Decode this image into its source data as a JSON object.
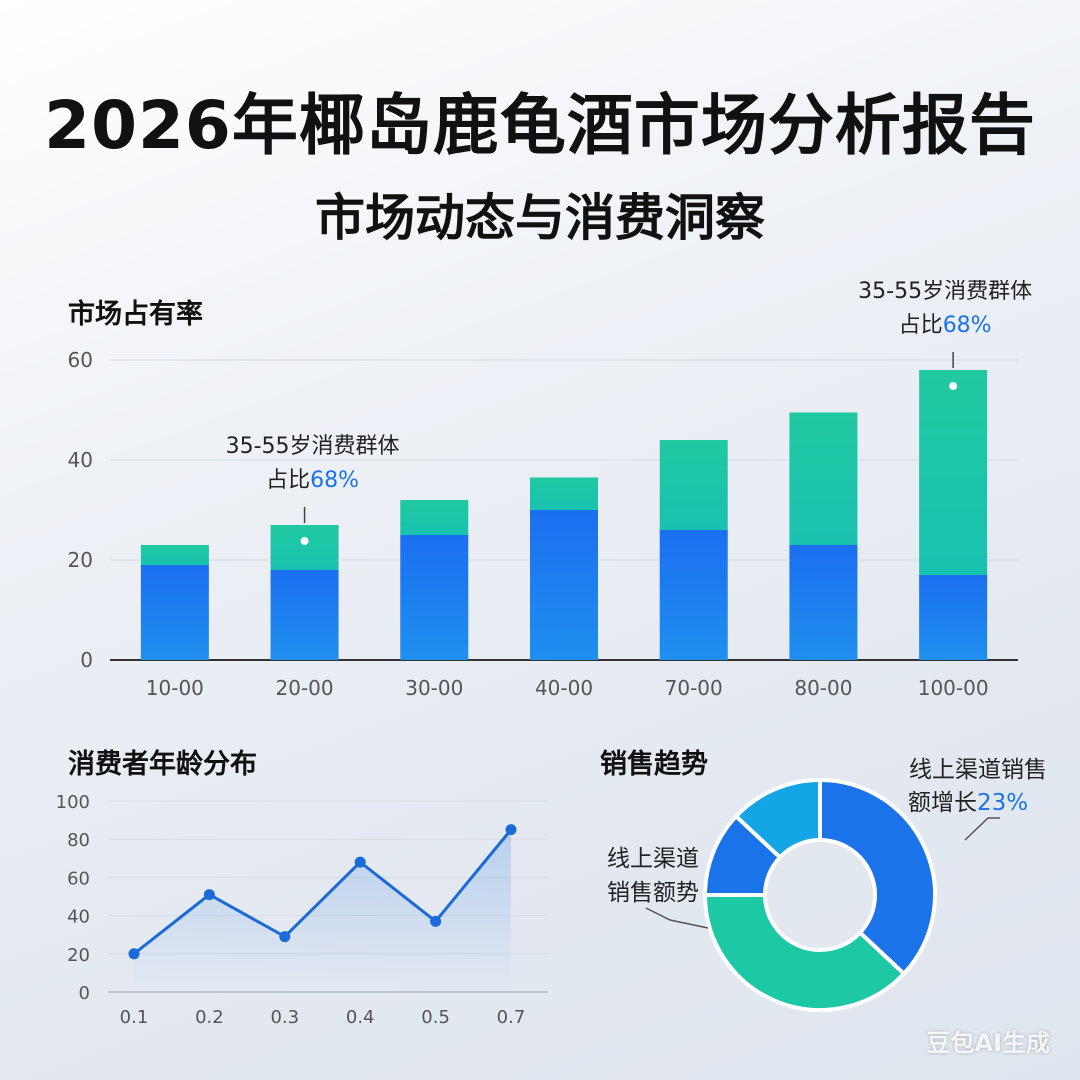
{
  "header": {
    "title": "2026年椰岛鹿龟酒市场分析报告",
    "subtitle": "市场动态与消费洞察"
  },
  "watermark": "豆包AI生成",
  "colors": {
    "blue": "#1a73e8",
    "teal": "#1dc9a4",
    "lightblue": "#13a5e6",
    "accent": "#1a73e8"
  },
  "chart_data": [
    {
      "id": "market-share",
      "type": "bar",
      "title": "市场占有率",
      "stacked": true,
      "categories": [
        "10-00",
        "20-00",
        "30-00",
        "40-00",
        "70-00",
        "80-00",
        "100-00"
      ],
      "series": [
        {
          "color": "#1a73e8",
          "values": [
            19,
            18,
            25,
            30,
            26,
            23,
            17
          ]
        },
        {
          "color": "#1dc9a4",
          "values": [
            4,
            9,
            7,
            6.5,
            18,
            26.5,
            41
          ]
        }
      ],
      "ylim": [
        0,
        60
      ],
      "yticks": [
        0,
        20,
        40,
        60
      ],
      "grid": true,
      "annotations": [
        {
          "category": "20-00",
          "line1": "35-55岁消费群体",
          "prefix": "占比",
          "highlight": "68%"
        },
        {
          "category": "100-00",
          "line1": "35-55岁消费群体",
          "prefix": "占比",
          "highlight": "68%"
        }
      ]
    },
    {
      "id": "age-distribution",
      "type": "line",
      "title": "消费者年龄分布",
      "x": [
        "0.1",
        "0.2",
        "0.3",
        "0.4",
        "0.5",
        "0.7"
      ],
      "y": [
        20,
        51,
        29,
        68,
        37,
        85
      ],
      "ylim": [
        0,
        100
      ],
      "yticks": [
        0,
        20,
        40,
        60,
        80,
        100
      ],
      "grid": true
    },
    {
      "id": "sales-trend",
      "type": "pie",
      "title": "销售趋势",
      "donut": true,
      "slices": [
        {
          "value": 37,
          "color": "#1a73e8"
        },
        {
          "value": 38,
          "color": "#1dc9a4"
        },
        {
          "value": 12,
          "color": "#1a73e8"
        },
        {
          "value": 13,
          "color": "#13a5e6"
        }
      ],
      "annotations": [
        {
          "line1": "线上渠道销售",
          "prefix": "额增长",
          "highlight": "23%"
        },
        {
          "line1": "线上渠道",
          "line2": "销售额势"
        }
      ]
    }
  ]
}
